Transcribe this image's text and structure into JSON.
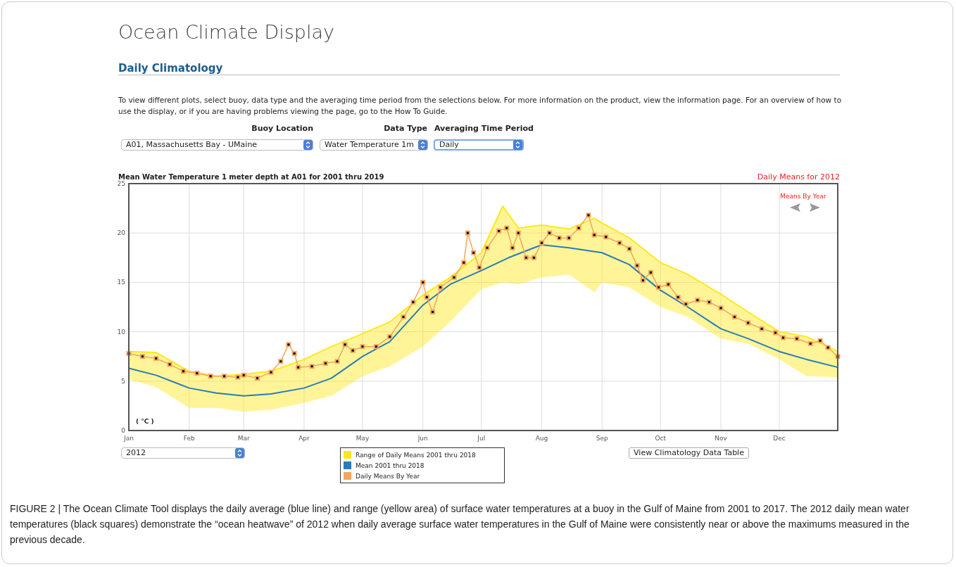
{
  "chart_data": {
    "type": "line",
    "title": "Mean Water Temperature 1 meter depth at A01 for 2001 thru 2019",
    "subtitle": "Daily Means for 2012",
    "ylabel": "( °C )",
    "xlim": [
      "--01-01",
      "--12-31"
    ],
    "xticks": [
      {
        "value": "--01-01",
        "label": "Jan"
      },
      {
        "value": "--02-01",
        "label": "Feb"
      },
      {
        "value": "--03-01",
        "label": "Mar"
      },
      {
        "value": "--04-01",
        "label": "Apr"
      },
      {
        "value": "--05-01",
        "label": "May"
      },
      {
        "value": "--06-01",
        "label": "Jun"
      },
      {
        "value": "--07-01",
        "label": "Jul"
      },
      {
        "value": "--08-01",
        "label": "Aug"
      },
      {
        "value": "--09-01",
        "label": "Sep"
      },
      {
        "value": "--10-01",
        "label": "Oct"
      },
      {
        "value": "--11-01",
        "label": "Nov"
      },
      {
        "value": "--12-01",
        "label": "Dec"
      }
    ],
    "ylim": [
      0,
      25
    ],
    "yticks": [
      0,
      5,
      10,
      15,
      20,
      25
    ],
    "grid": true,
    "legend": "bottom",
    "series": [
      {
        "name": "Range of Daily Means 2001 thru 2018",
        "type": "line",
        "marker": "none",
        "color": "#ffe81a",
        "x": [
          "--01-01",
          "--01-15",
          "--02-01",
          "--02-15",
          "--03-01",
          "--03-15",
          "--04-01",
          "--04-15",
          "--05-01",
          "--05-15",
          "--06-01",
          "--06-15",
          "--07-01",
          "--07-12",
          "--07-20",
          "--08-01",
          "--08-15",
          "--08-28",
          "--09-01",
          "--09-15",
          "--10-01",
          "--10-15",
          "--11-01",
          "--11-15",
          "--12-01",
          "--12-15",
          "--12-31"
        ],
        "values": [
          8.0,
          7.9,
          6.0,
          5.5,
          5.7,
          6.0,
          7.2,
          8.5,
          9.8,
          11.0,
          13.7,
          15.5,
          18.0,
          22.7,
          20.5,
          20.8,
          20.4,
          21.5,
          21.0,
          19.5,
          17.0,
          15.8,
          13.8,
          12.0,
          10.0,
          9.5,
          8.0
        ],
        "upper": [
          8.0,
          7.9,
          6.0,
          5.5,
          5.7,
          6.0,
          7.2,
          8.5,
          9.8,
          11.0,
          13.7,
          15.5,
          18.0,
          22.7,
          20.5,
          20.8,
          20.4,
          21.5,
          21.0,
          19.5,
          17.0,
          15.8,
          13.8,
          12.0,
          10.0,
          9.5,
          8.0
        ],
        "lower": [
          5.2,
          4.4,
          2.3,
          2.3,
          1.9,
          2.1,
          2.8,
          3.5,
          5.5,
          6.5,
          8.5,
          11.0,
          14.3,
          15.0,
          14.8,
          15.5,
          15.8,
          14.0,
          15.0,
          14.5,
          12.5,
          11.5,
          9.3,
          8.8,
          7.2,
          5.5,
          5.4
        ]
      },
      {
        "name": "Mean 2001 thru 2018",
        "type": "line",
        "color": "#2a7ab9",
        "marker": "none",
        "x": [
          "--01-01",
          "--01-15",
          "--02-01",
          "--02-15",
          "--03-01",
          "--03-15",
          "--04-01",
          "--04-15",
          "--05-01",
          "--05-15",
          "--06-01",
          "--06-15",
          "--07-01",
          "--07-15",
          "--08-01",
          "--08-15",
          "--09-01",
          "--09-15",
          "--10-01",
          "--10-15",
          "--11-01",
          "--11-15",
          "--12-01",
          "--12-15",
          "--12-31"
        ],
        "values": [
          6.3,
          5.6,
          4.3,
          3.8,
          3.5,
          3.7,
          4.3,
          5.3,
          7.5,
          9.0,
          12.7,
          14.8,
          16.2,
          17.5,
          18.8,
          18.5,
          18.0,
          16.8,
          14.2,
          12.5,
          10.3,
          9.3,
          8.0,
          7.2,
          6.4
        ]
      },
      {
        "name": "Daily Means By Year",
        "type": "line",
        "color": "#f5a55c",
        "marker": "square",
        "x": [
          "--01-01",
          "--01-08",
          "--01-15",
          "--01-22",
          "--01-29",
          "--02-05",
          "--02-12",
          "--02-19",
          "--02-26",
          "--03-01",
          "--03-08",
          "--03-15",
          "--03-20",
          "--03-24",
          "--03-27",
          "--03-29",
          "--04-05",
          "--04-12",
          "--04-18",
          "--04-22",
          "--04-26",
          "--05-01",
          "--05-08",
          "--05-15",
          "--05-22",
          "--05-27",
          "--06-01",
          "--06-03",
          "--06-06",
          "--06-10",
          "--06-17",
          "--06-22",
          "--06-24",
          "--06-27",
          "--06-30",
          "--07-04",
          "--07-10",
          "--07-14",
          "--07-17",
          "--07-20",
          "--07-24",
          "--07-28",
          "--08-01",
          "--08-05",
          "--08-10",
          "--08-15",
          "--08-20",
          "--08-25",
          "--08-28",
          "--09-03",
          "--09-10",
          "--09-15",
          "--09-19",
          "--09-22",
          "--09-26",
          "--09-30",
          "--10-05",
          "--10-10",
          "--10-14",
          "--10-20",
          "--10-26",
          "--11-01",
          "--11-08",
          "--11-15",
          "--11-22",
          "--11-29",
          "--12-03",
          "--12-10",
          "--12-17",
          "--12-22",
          "--12-26",
          "--12-31"
        ],
        "values": [
          7.8,
          7.5,
          7.3,
          6.7,
          6.0,
          5.8,
          5.5,
          5.5,
          5.4,
          5.6,
          5.3,
          5.9,
          7.0,
          8.7,
          7.8,
          6.4,
          6.5,
          6.8,
          7.0,
          8.7,
          8.1,
          8.5,
          8.5,
          9.5,
          11.5,
          13.0,
          15.0,
          13.5,
          12.0,
          14.5,
          15.5,
          17.0,
          20.0,
          18.0,
          16.5,
          18.5,
          20.2,
          20.5,
          18.5,
          20.0,
          17.5,
          17.5,
          19.0,
          20.0,
          19.5,
          19.5,
          20.5,
          21.8,
          19.8,
          19.6,
          19.0,
          18.4,
          16.7,
          15.2,
          16.0,
          14.5,
          14.8,
          13.5,
          12.8,
          13.2,
          13.0,
          12.4,
          11.5,
          10.9,
          10.3,
          9.9,
          9.4,
          9.3,
          8.8,
          9.1,
          8.4,
          7.5
        ]
      }
    ],
    "annotations": [
      "Ocean Climate Display",
      "Daily Climatology",
      "To view different plots, select buoy, data type and the averaging time period from the selections below. For more information on the product, view the information page. For an overview of how to use the display, or if you are having problems viewing the page, go to the How To Guide.",
      "Buoy Location",
      "Data Type",
      "Averaging Time Period",
      "A01, Massachusetts Bay - UMaine",
      "Water Temperature 1m",
      "Daily",
      "Means By Year",
      "2012",
      "View Climatology Data Table",
      "FIGURE 2 | The Ocean Climate Tool displays the daily average (blue line) and range (yellow area) of surface water temperatures at a buoy in the Gulf of Maine from 2001 to 2017. The 2012 daily mean water temperatures (black squares) demonstrate the “ocean heatwave” of 2012 when daily average surface water temperatures in the Gulf of Maine were consistently near or above the maximums measured in the previous decade."
    ]
  }
}
